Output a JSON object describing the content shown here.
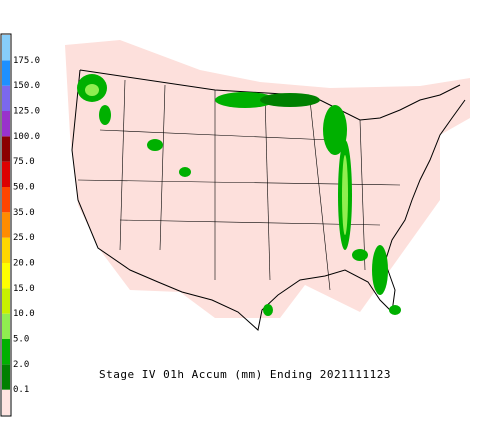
{
  "legend": {
    "bands": [
      "#ffe4e1",
      "#008000",
      "#00b000",
      "#90ee50",
      "#c8f000",
      "#ffff00",
      "#ffd700",
      "#ff8c00",
      "#ff4500",
      "#dd0000",
      "#8b0000",
      "#9932cc",
      "#7b68ee",
      "#1e90ff",
      "#87cefa"
    ],
    "labels": [
      "0.1",
      "2.0",
      "5.0",
      "10.0",
      "15.0",
      "20.0",
      "25.0",
      "35.0",
      "50.0",
      "75.0",
      "100.0",
      "125.0",
      "150.0",
      "175.0"
    ]
  },
  "caption": "Stage IV 01h Accum (mm) Ending 2021111123"
}
